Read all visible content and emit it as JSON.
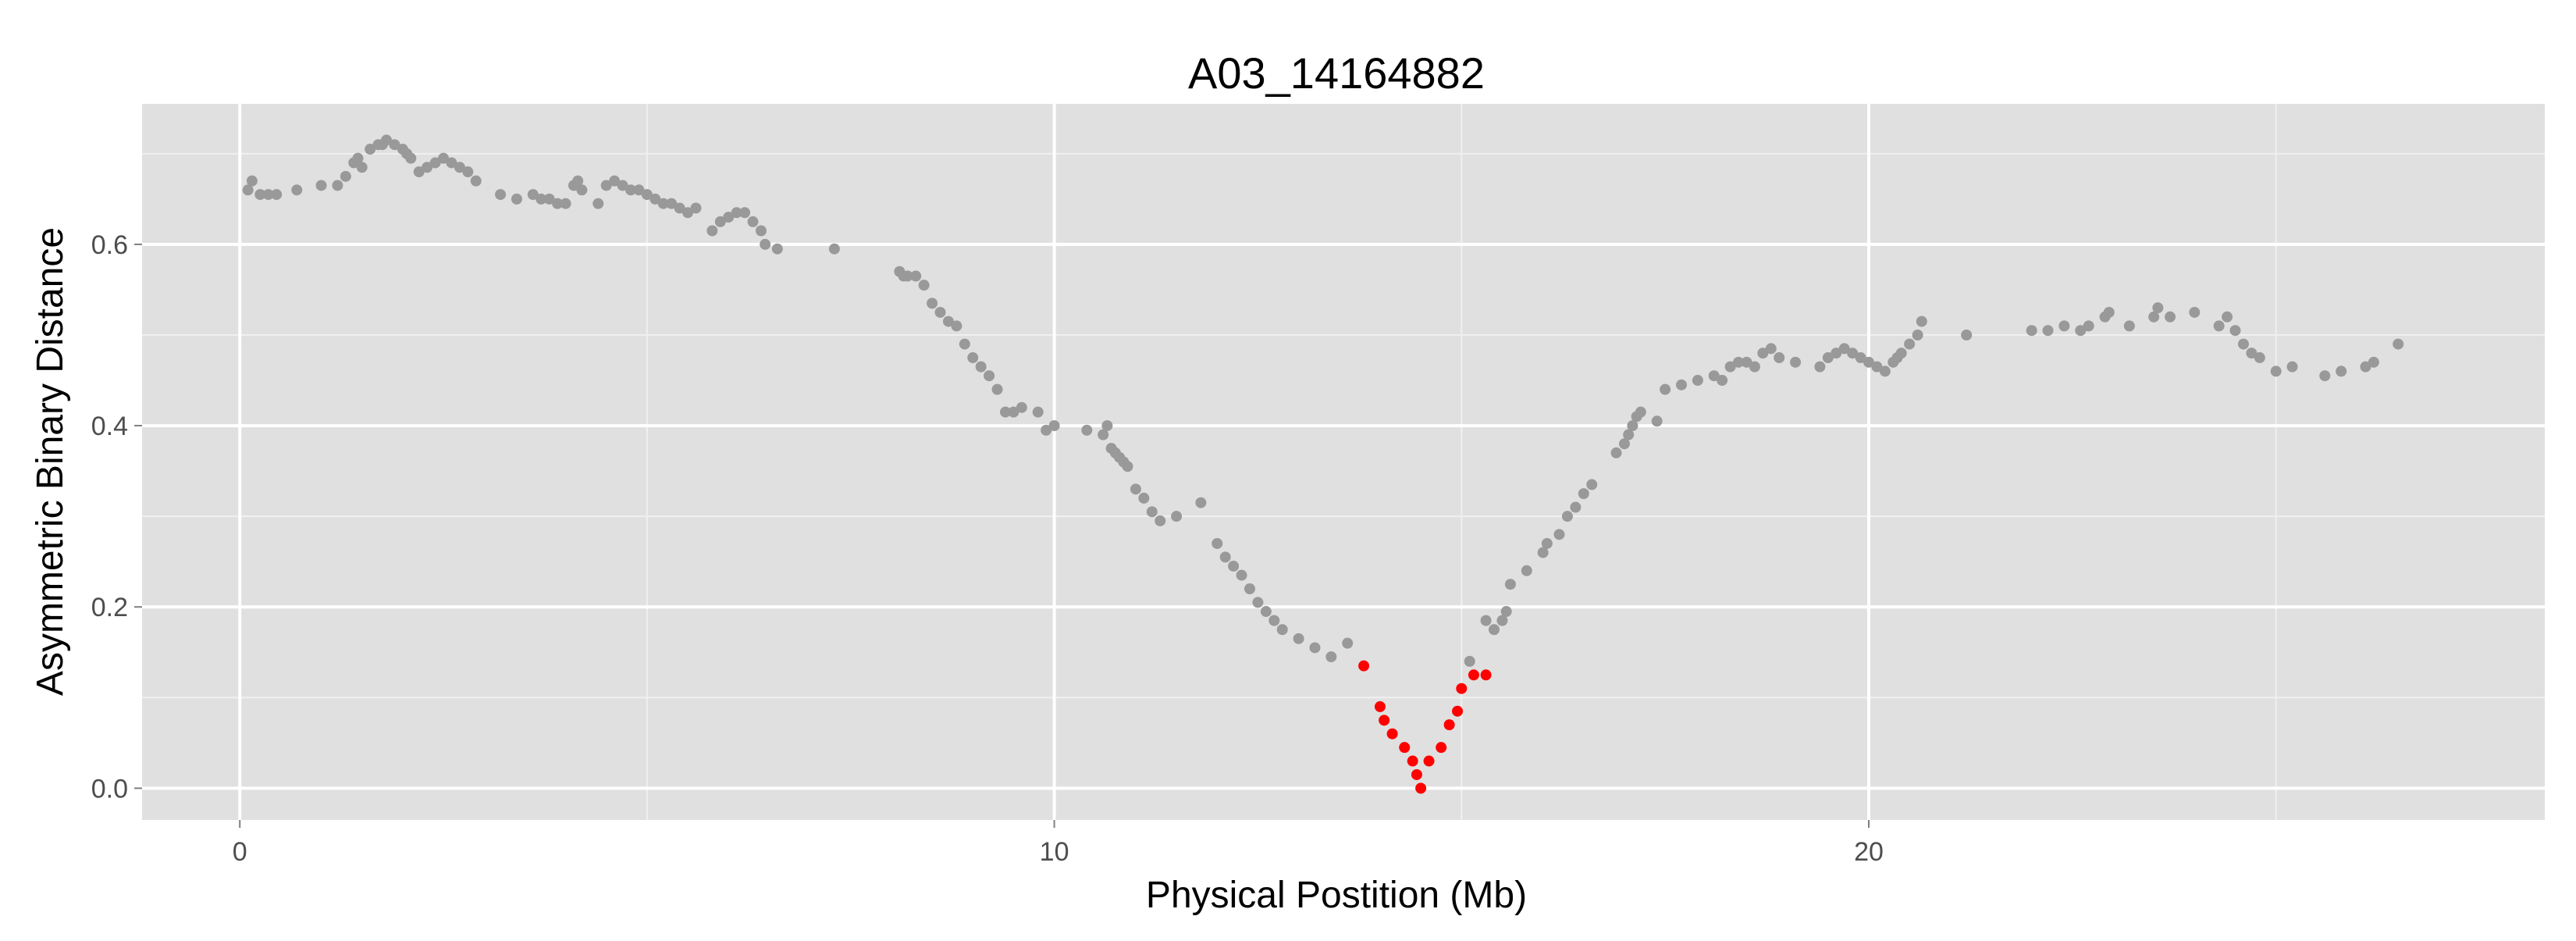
{
  "chart_data": {
    "type": "scatter",
    "title": "A03_14164882",
    "xlabel": "Physical Postition (Mb)",
    "ylabel": "Asymmetric Binary Distance",
    "xlim": [
      -1.2,
      28.3
    ],
    "ylim": [
      -0.035,
      0.755
    ],
    "x_ticks": [
      0,
      10,
      20
    ],
    "x_tick_labels": [
      "0",
      "10",
      "20"
    ],
    "y_ticks": [
      0.0,
      0.2,
      0.4,
      0.6
    ],
    "y_tick_labels": [
      "0.0",
      "0.2",
      "0.4",
      "0.6"
    ],
    "grid": true,
    "background": "#e0e0e0",
    "grid_color": "#ffffff",
    "series": [
      {
        "color": "#999999",
        "points": [
          [
            0.1,
            0.66
          ],
          [
            0.15,
            0.67
          ],
          [
            0.25,
            0.655
          ],
          [
            0.35,
            0.655
          ],
          [
            0.45,
            0.655
          ],
          [
            0.7,
            0.66
          ],
          [
            1.0,
            0.665
          ],
          [
            1.2,
            0.665
          ],
          [
            1.3,
            0.675
          ],
          [
            1.4,
            0.69
          ],
          [
            1.45,
            0.695
          ],
          [
            1.5,
            0.685
          ],
          [
            1.6,
            0.705
          ],
          [
            1.7,
            0.71
          ],
          [
            1.75,
            0.71
          ],
          [
            1.8,
            0.715
          ],
          [
            1.9,
            0.71
          ],
          [
            2.0,
            0.705
          ],
          [
            2.05,
            0.7
          ],
          [
            2.1,
            0.695
          ],
          [
            2.2,
            0.68
          ],
          [
            2.3,
            0.685
          ],
          [
            2.4,
            0.69
          ],
          [
            2.5,
            0.695
          ],
          [
            2.6,
            0.69
          ],
          [
            2.7,
            0.685
          ],
          [
            2.8,
            0.68
          ],
          [
            2.9,
            0.67
          ],
          [
            3.2,
            0.655
          ],
          [
            3.4,
            0.65
          ],
          [
            3.6,
            0.655
          ],
          [
            3.7,
            0.65
          ],
          [
            3.8,
            0.65
          ],
          [
            3.9,
            0.645
          ],
          [
            4.0,
            0.645
          ],
          [
            4.1,
            0.665
          ],
          [
            4.15,
            0.67
          ],
          [
            4.2,
            0.66
          ],
          [
            4.4,
            0.645
          ],
          [
            4.5,
            0.665
          ],
          [
            4.6,
            0.67
          ],
          [
            4.7,
            0.665
          ],
          [
            4.8,
            0.66
          ],
          [
            4.9,
            0.66
          ],
          [
            5.0,
            0.655
          ],
          [
            5.1,
            0.65
          ],
          [
            5.2,
            0.645
          ],
          [
            5.3,
            0.645
          ],
          [
            5.4,
            0.64
          ],
          [
            5.5,
            0.635
          ],
          [
            5.6,
            0.64
          ],
          [
            5.8,
            0.615
          ],
          [
            5.9,
            0.625
          ],
          [
            6.0,
            0.63
          ],
          [
            6.1,
            0.635
          ],
          [
            6.2,
            0.635
          ],
          [
            6.3,
            0.625
          ],
          [
            6.4,
            0.615
          ],
          [
            6.45,
            0.6
          ],
          [
            6.6,
            0.595
          ],
          [
            7.3,
            0.595
          ],
          [
            8.1,
            0.57
          ],
          [
            8.15,
            0.565
          ],
          [
            8.2,
            0.565
          ],
          [
            8.3,
            0.565
          ],
          [
            8.4,
            0.555
          ],
          [
            8.5,
            0.535
          ],
          [
            8.6,
            0.525
          ],
          [
            8.7,
            0.515
          ],
          [
            8.8,
            0.51
          ],
          [
            8.9,
            0.49
          ],
          [
            9.0,
            0.475
          ],
          [
            9.1,
            0.465
          ],
          [
            9.2,
            0.455
          ],
          [
            9.3,
            0.44
          ],
          [
            9.4,
            0.415
          ],
          [
            9.5,
            0.415
          ],
          [
            9.6,
            0.42
          ],
          [
            9.8,
            0.415
          ],
          [
            9.9,
            0.395
          ],
          [
            10.0,
            0.4
          ],
          [
            10.4,
            0.395
          ],
          [
            10.6,
            0.39
          ],
          [
            10.65,
            0.4
          ],
          [
            10.7,
            0.375
          ],
          [
            10.75,
            0.37
          ],
          [
            10.8,
            0.365
          ],
          [
            10.85,
            0.36
          ],
          [
            10.9,
            0.355
          ],
          [
            11.0,
            0.33
          ],
          [
            11.1,
            0.32
          ],
          [
            11.2,
            0.305
          ],
          [
            11.3,
            0.295
          ],
          [
            11.5,
            0.3
          ],
          [
            11.8,
            0.315
          ],
          [
            12.0,
            0.27
          ],
          [
            12.1,
            0.255
          ],
          [
            12.2,
            0.245
          ],
          [
            12.3,
            0.235
          ],
          [
            12.4,
            0.22
          ],
          [
            12.5,
            0.205
          ],
          [
            12.6,
            0.195
          ],
          [
            12.7,
            0.185
          ],
          [
            12.8,
            0.175
          ],
          [
            13.0,
            0.165
          ],
          [
            13.2,
            0.155
          ],
          [
            13.4,
            0.145
          ],
          [
            13.6,
            0.16
          ],
          [
            15.1,
            0.14
          ],
          [
            15.3,
            0.185
          ],
          [
            15.4,
            0.175
          ],
          [
            15.5,
            0.185
          ],
          [
            15.55,
            0.195
          ],
          [
            15.6,
            0.225
          ],
          [
            15.8,
            0.24
          ],
          [
            16.0,
            0.26
          ],
          [
            16.05,
            0.27
          ],
          [
            16.2,
            0.28
          ],
          [
            16.3,
            0.3
          ],
          [
            16.4,
            0.31
          ],
          [
            16.5,
            0.325
          ],
          [
            16.6,
            0.335
          ],
          [
            16.9,
            0.37
          ],
          [
            17.0,
            0.38
          ],
          [
            17.05,
            0.39
          ],
          [
            17.1,
            0.4
          ],
          [
            17.15,
            0.41
          ],
          [
            17.2,
            0.415
          ],
          [
            17.4,
            0.405
          ],
          [
            17.5,
            0.44
          ],
          [
            17.7,
            0.445
          ],
          [
            17.9,
            0.45
          ],
          [
            18.1,
            0.455
          ],
          [
            18.2,
            0.45
          ],
          [
            18.3,
            0.465
          ],
          [
            18.4,
            0.47
          ],
          [
            18.5,
            0.47
          ],
          [
            18.6,
            0.465
          ],
          [
            18.7,
            0.48
          ],
          [
            18.8,
            0.485
          ],
          [
            18.9,
            0.475
          ],
          [
            19.1,
            0.47
          ],
          [
            19.4,
            0.465
          ],
          [
            19.5,
            0.475
          ],
          [
            19.6,
            0.48
          ],
          [
            19.7,
            0.485
          ],
          [
            19.8,
            0.48
          ],
          [
            19.9,
            0.475
          ],
          [
            20.0,
            0.47
          ],
          [
            20.1,
            0.465
          ],
          [
            20.2,
            0.46
          ],
          [
            20.3,
            0.47
          ],
          [
            20.35,
            0.475
          ],
          [
            20.4,
            0.48
          ],
          [
            20.5,
            0.49
          ],
          [
            20.6,
            0.5
          ],
          [
            20.65,
            0.515
          ],
          [
            21.2,
            0.5
          ],
          [
            22.0,
            0.505
          ],
          [
            22.2,
            0.505
          ],
          [
            22.4,
            0.51
          ],
          [
            22.6,
            0.505
          ],
          [
            22.7,
            0.51
          ],
          [
            22.9,
            0.52
          ],
          [
            22.95,
            0.525
          ],
          [
            23.2,
            0.51
          ],
          [
            23.5,
            0.52
          ],
          [
            23.55,
            0.53
          ],
          [
            23.7,
            0.52
          ],
          [
            24.0,
            0.525
          ],
          [
            24.3,
            0.51
          ],
          [
            24.4,
            0.52
          ],
          [
            24.5,
            0.505
          ],
          [
            24.6,
            0.49
          ],
          [
            24.7,
            0.48
          ],
          [
            24.8,
            0.475
          ],
          [
            25.0,
            0.46
          ],
          [
            25.2,
            0.465
          ],
          [
            25.6,
            0.455
          ],
          [
            25.8,
            0.46
          ],
          [
            26.1,
            0.465
          ],
          [
            26.2,
            0.47
          ],
          [
            26.5,
            0.49
          ]
        ]
      },
      {
        "color": "#ff0000",
        "points": [
          [
            13.8,
            0.135
          ],
          [
            14.0,
            0.09
          ],
          [
            14.05,
            0.075
          ],
          [
            14.15,
            0.06
          ],
          [
            14.3,
            0.045
          ],
          [
            14.4,
            0.03
          ],
          [
            14.45,
            0.015
          ],
          [
            14.5,
            0.0
          ],
          [
            14.6,
            0.03
          ],
          [
            14.75,
            0.045
          ],
          [
            14.85,
            0.07
          ],
          [
            14.95,
            0.085
          ],
          [
            15.0,
            0.11
          ],
          [
            15.15,
            0.125
          ],
          [
            15.3,
            0.125
          ]
        ]
      }
    ]
  }
}
